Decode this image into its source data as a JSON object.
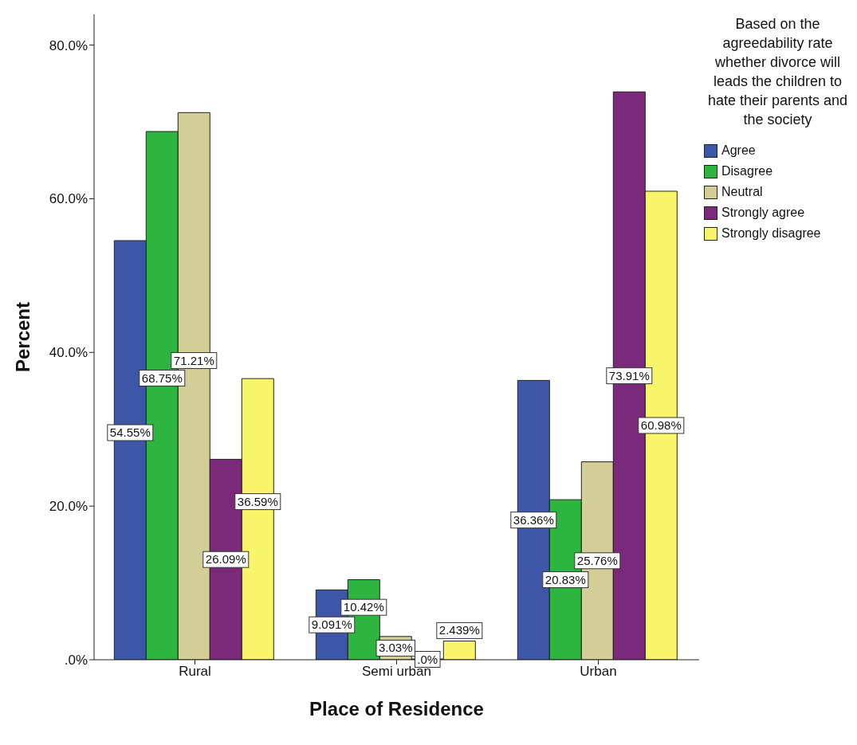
{
  "chart_data": {
    "type": "bar",
    "xlabel": "Place of Residence",
    "ylabel": "Percent",
    "legend_title": "Based on the agreedability rate whether divorce will leads the children to hate their parents and the society",
    "categories": [
      "Rural",
      "Semi urban",
      "Urban"
    ],
    "series": [
      {
        "name": "Agree",
        "color": "#3d56a8",
        "values": [
          54.55,
          9.091,
          36.36
        ],
        "value_labels": [
          "54.55%",
          "9.091%",
          "36.36%"
        ]
      },
      {
        "name": "Disagree",
        "color": "#2db53f",
        "values": [
          68.75,
          10.42,
          20.83
        ],
        "value_labels": [
          "68.75%",
          "10.42%",
          "20.83%"
        ]
      },
      {
        "name": "Neutral",
        "color": "#d3ce98",
        "values": [
          71.21,
          3.03,
          25.76
        ],
        "value_labels": [
          "71.21%",
          "3.03%",
          "25.76%"
        ]
      },
      {
        "name": "Strongly agree",
        "color": "#7b2a7b",
        "values": [
          26.09,
          0,
          73.91
        ],
        "value_labels": [
          "26.09%",
          ".0%",
          "73.91%"
        ]
      },
      {
        "name": "Strongly disagree",
        "color": "#f8f56a",
        "values": [
          36.59,
          2.439,
          60.98
        ],
        "value_labels": [
          "36.59%",
          "2.439%",
          "60.98%"
        ]
      }
    ],
    "ylim": [
      0,
      84
    ],
    "yticks": [
      {
        "value": 0,
        "label": ".0%"
      },
      {
        "value": 20,
        "label": "20.0%"
      },
      {
        "value": 40,
        "label": "40.0%"
      },
      {
        "value": 60,
        "label": "60.0%"
      },
      {
        "value": 80,
        "label": "80.0%"
      }
    ],
    "grid": false,
    "legend": "right"
  }
}
